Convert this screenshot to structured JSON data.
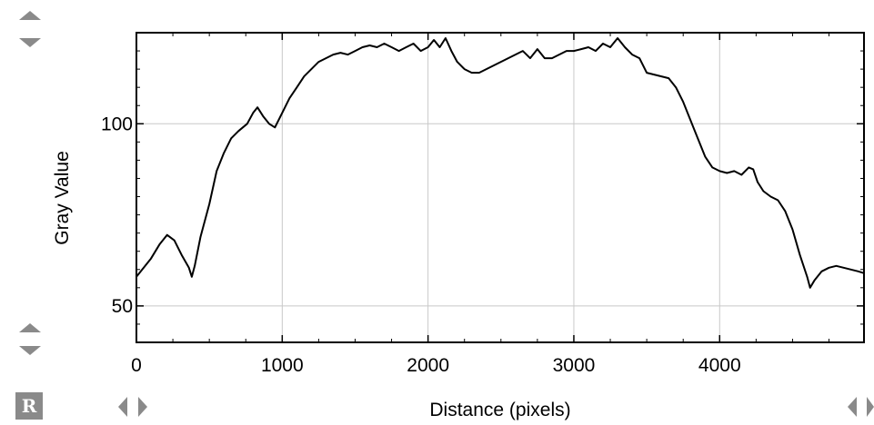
{
  "chart_data": {
    "type": "line",
    "xlabel": "Distance (pixels)",
    "ylabel": "Gray Value",
    "xlim": [
      0,
      4990
    ],
    "ylim": [
      40,
      125
    ],
    "xticks": [
      0,
      1000,
      2000,
      3000,
      4000
    ],
    "yticks": [
      50,
      100
    ],
    "grid": true,
    "series": [
      {
        "color": "#000000",
        "x": [
          0,
          40,
          100,
          160,
          210,
          260,
          310,
          360,
          380,
          400,
          440,
          500,
          550,
          600,
          650,
          700,
          760,
          800,
          830,
          870,
          910,
          950,
          1000,
          1050,
          1100,
          1150,
          1200,
          1250,
          1300,
          1350,
          1400,
          1450,
          1500,
          1550,
          1600,
          1650,
          1700,
          1750,
          1800,
          1850,
          1900,
          1950,
          2000,
          2040,
          2080,
          2120,
          2160,
          2200,
          2250,
          2300,
          2350,
          2400,
          2450,
          2500,
          2550,
          2600,
          2650,
          2700,
          2750,
          2800,
          2850,
          2900,
          2950,
          3000,
          3050,
          3100,
          3150,
          3200,
          3250,
          3300,
          3350,
          3400,
          3450,
          3500,
          3550,
          3600,
          3650,
          3700,
          3750,
          3800,
          3850,
          3900,
          3950,
          4000,
          4050,
          4100,
          4150,
          4200,
          4230,
          4260,
          4300,
          4350,
          4400,
          4450,
          4500,
          4550,
          4600,
          4620,
          4650,
          4700,
          4750,
          4800,
          4850,
          4900,
          4950,
          4990
        ],
        "y": [
          58,
          60,
          63,
          67,
          69.5,
          68,
          64,
          60.5,
          58,
          61,
          69,
          78,
          87,
          92,
          96,
          98,
          100,
          103,
          104.5,
          102,
          100,
          99,
          103,
          107,
          110,
          113,
          115,
          117,
          118,
          119,
          119.5,
          119,
          120,
          121,
          121.5,
          121,
          122,
          121,
          120,
          121,
          122,
          120,
          121,
          123,
          121,
          123.5,
          120,
          117,
          115,
          114,
          114,
          115,
          116,
          117,
          118,
          119,
          120,
          118,
          120.5,
          118,
          118,
          119,
          120,
          120,
          120.5,
          121,
          120,
          122,
          121,
          123.5,
          121,
          119,
          118,
          114,
          113.5,
          113,
          112.5,
          110,
          106,
          101,
          96,
          91,
          88,
          87,
          86.5,
          87,
          86,
          88,
          87.5,
          84,
          81.5,
          80,
          79,
          76,
          71,
          64,
          58,
          55,
          57,
          59.5,
          60.5,
          61,
          60.5,
          60,
          59.5,
          59
        ]
      }
    ]
  },
  "controls": {
    "r_button_label": "R"
  }
}
